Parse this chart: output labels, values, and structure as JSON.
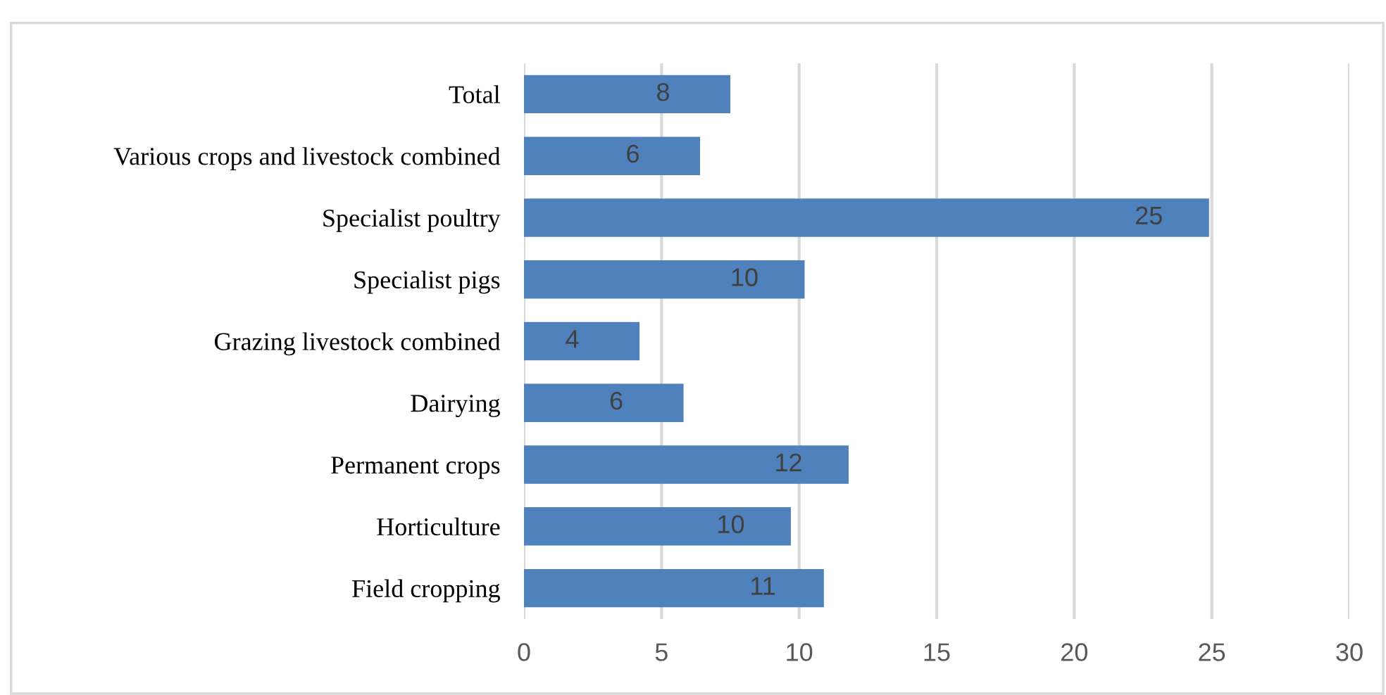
{
  "chart_data": {
    "type": "bar",
    "orientation": "horizontal",
    "categories": [
      "Total",
      "Various crops and livestock combined",
      "Specialist poultry",
      "Specialist pigs",
      "Grazing livestock combined",
      "Dairying",
      "Permanent crops",
      "Horticulture",
      "Field cropping"
    ],
    "values": [
      7.5,
      6.4,
      24.9,
      10.2,
      4.2,
      5.8,
      11.8,
      9.7,
      10.9
    ],
    "value_labels": [
      "8",
      "6",
      "25",
      "10",
      "4",
      "6",
      "12",
      "10",
      "11"
    ],
    "color": "#4f81bd",
    "xlim": [
      0,
      30
    ],
    "xticks": [
      0,
      5,
      10,
      15,
      20,
      25,
      30
    ],
    "grid": "x"
  }
}
